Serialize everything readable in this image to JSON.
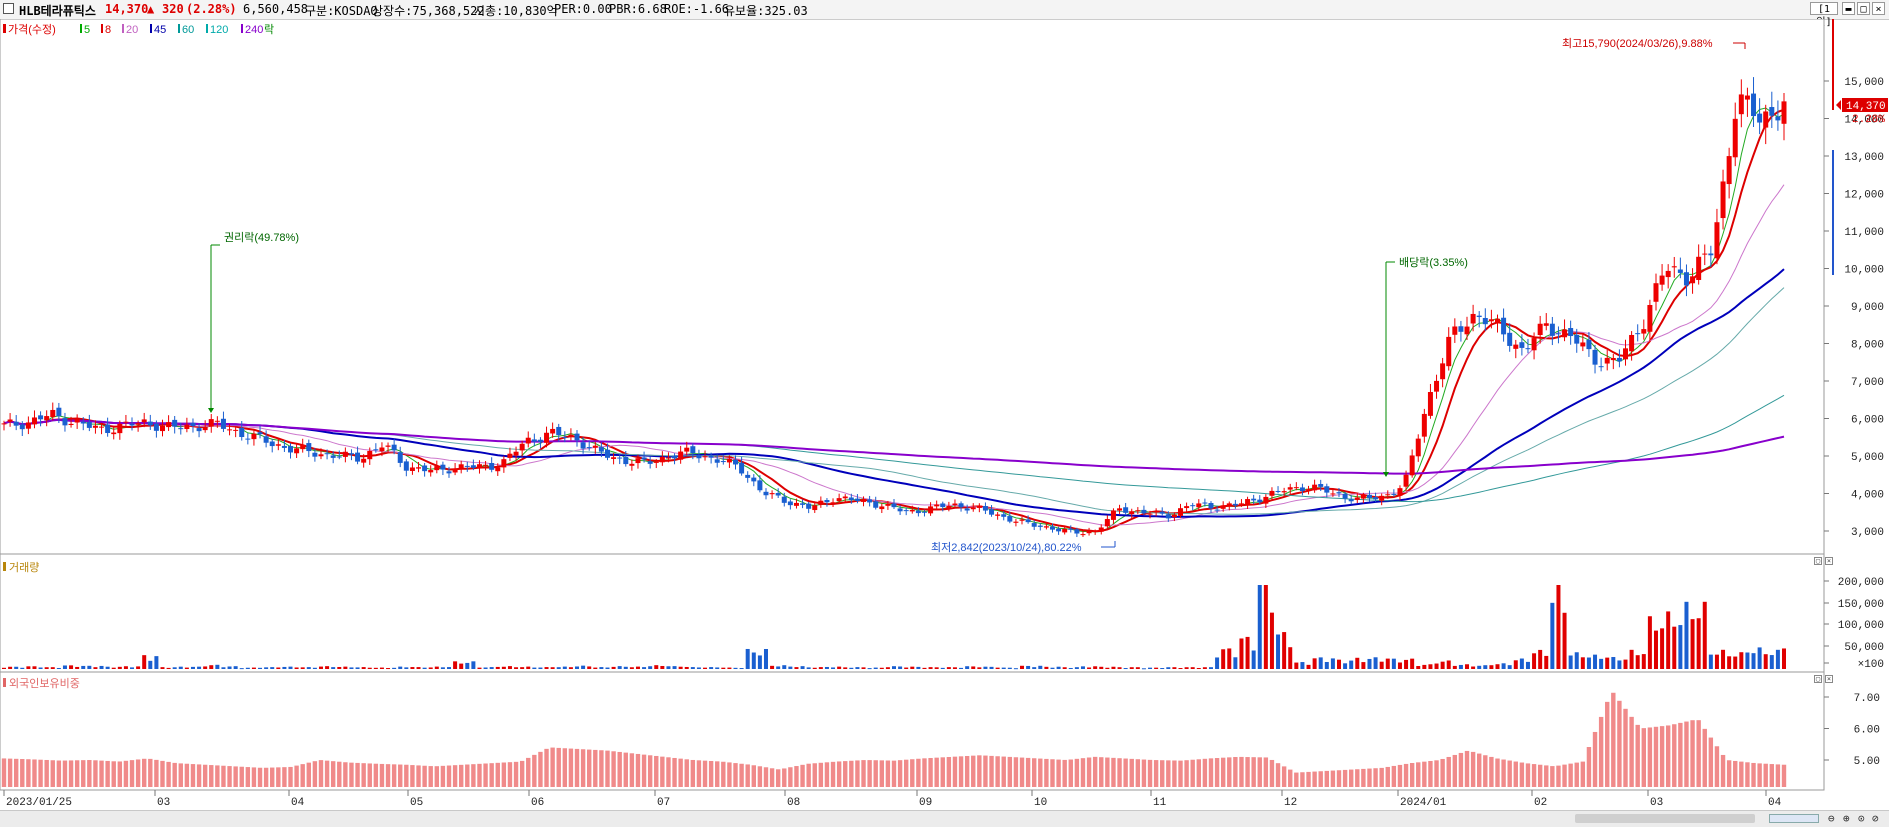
{
  "header": {
    "name": "HLB테라퓨틱스",
    "price": "14,370",
    "change_arrow": "▲",
    "change": "320",
    "change_pct": "(2.28%)",
    "volume": "6,560,458",
    "market": "구분:KOSDAQ",
    "shares": "상장수:75,368,522",
    "cap": "시총:10,830억",
    "per": "PER:0.00",
    "pbr": "PBR:6.68",
    "roe": "ROE:-1.66",
    "float": "유보율:325.03",
    "period_button": "[1일]"
  },
  "price_pane": {
    "legend_title": "가격(수정)",
    "ma_labels": [
      {
        "label": "5",
        "color": "#00aa00"
      },
      {
        "label": "8",
        "color": "#dd0000"
      },
      {
        "label": "20",
        "color": "#c060c0"
      },
      {
        "label": "45",
        "color": "#0000aa"
      },
      {
        "label": "60",
        "color": "#009999"
      },
      {
        "label": "120",
        "color": "#00aaaa"
      },
      {
        "label": "240",
        "color": "#8800cc"
      }
    ],
    "legend_event": "락",
    "last_price_label": "14,370",
    "last_pct_label": "2.28%",
    "y_ticks": [
      "15,000",
      "14,000",
      "13,000",
      "12,000",
      "11,000",
      "10,000",
      "9,000",
      "8,000",
      "7,000",
      "6,000",
      "5,000",
      "4,000",
      "3,000"
    ],
    "annotations": {
      "rights": "권리락(49.78%)",
      "dividend": "배당락(3.35%)",
      "high": "최고15,790(2024/03/26),9.88%",
      "low": "최저2,842(2023/10/24),80.22%"
    }
  },
  "volume_pane": {
    "title": "거래량",
    "y_ticks": [
      "200,000",
      "150,000",
      "100,000",
      "50,000",
      "×100"
    ]
  },
  "foreign_pane": {
    "title": "외국인보유비중",
    "y_ticks": [
      "7.00",
      "6.00",
      "5.00"
    ]
  },
  "x_axis": {
    "labels": [
      "2023/01/25",
      "03",
      "04",
      "05",
      "06",
      "07",
      "08",
      "09",
      "10",
      "11",
      "12",
      "2024/01",
      "02",
      "03",
      "04"
    ]
  },
  "chart_data": {
    "type": "candlestick",
    "title": "HLB테라퓨틱스",
    "ylim": [
      2700,
      16100
    ],
    "x_labels": [
      "2023/01/25",
      "03",
      "04",
      "05",
      "06",
      "07",
      "08",
      "09",
      "10",
      "11",
      "12",
      "2024/01",
      "02",
      "03",
      "04"
    ],
    "close_path": [
      5800,
      5900,
      6100,
      5900,
      5700,
      5800,
      5900,
      5750,
      5800,
      5850,
      5600,
      5400,
      5200,
      5100,
      5000,
      4950,
      5300,
      4700,
      4600,
      4700,
      4700,
      4800,
      5400,
      5600,
      5500,
      5100,
      4900,
      4800,
      5000,
      5100,
      4900,
      4700,
      4000,
      3800,
      3600,
      3900,
      3800,
      3700,
      3500,
      3600,
      3700,
      3600,
      3400,
      3200,
      3100,
      2950,
      3000,
      3600,
      3500,
      3400,
      3700,
      3650,
      3700,
      3900,
      4100,
      4200,
      4000,
      3850,
      3900,
      4200,
      6500,
      8200,
      8800,
      8400,
      7800,
      8500,
      8200,
      7600,
      7500,
      8500,
      10000,
      9800,
      10500,
      14500,
      14000,
      14370
    ],
    "volume_series": [
      5,
      6,
      4,
      8,
      7,
      5,
      6,
      30,
      4,
      5,
      9,
      6,
      3,
      4,
      5,
      4,
      6,
      5,
      4,
      3,
      5,
      4,
      5,
      16,
      4,
      6,
      5,
      4,
      5,
      7,
      4,
      6,
      5,
      8,
      6,
      4,
      4,
      3,
      42,
      8,
      6,
      4,
      5,
      4,
      3,
      6,
      5,
      4,
      4,
      6,
      5,
      3,
      7,
      5,
      4,
      6,
      5,
      4,
      3,
      4,
      4,
      4,
      45,
      70,
      210,
      80,
      15,
      25,
      20,
      24,
      25,
      22,
      10,
      18,
      10,
      8,
      12,
      22,
      40,
      170,
      35,
      30,
      25,
      40,
      110,
      120,
      140,
      40,
      35,
      45,
      40,
      55
    ],
    "foreign_ratio": [
      5.05,
      5.02,
      4.98,
      5.0,
      4.95,
      5.05,
      4.9,
      4.85,
      4.8,
      4.75,
      4.78,
      5.0,
      4.92,
      4.88,
      4.85,
      4.8,
      4.85,
      4.9,
      4.95,
      5.4,
      5.35,
      5.3,
      5.2,
      5.1,
      5.0,
      4.95,
      4.85,
      4.7,
      4.88,
      4.95,
      5.0,
      4.98,
      5.05,
      5.1,
      5.15,
      5.1,
      5.05,
      5.0,
      5.1,
      5.05,
      5.0,
      4.98,
      5.05,
      5.1,
      5.08,
      4.6,
      4.65,
      4.7,
      4.75,
      4.9,
      5.0,
      5.3,
      5.05,
      4.9,
      4.8,
      4.95,
      7.2,
      6.0,
      6.1,
      6.3,
      5.0,
      4.9,
      4.85
    ]
  }
}
